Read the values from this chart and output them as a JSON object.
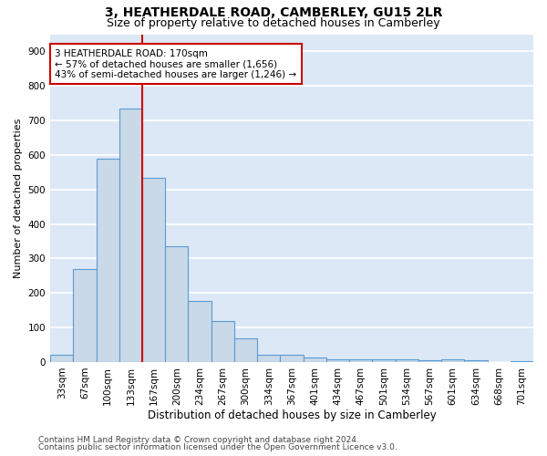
{
  "title": "3, HEATHERDALE ROAD, CAMBERLEY, GU15 2LR",
  "subtitle": "Size of property relative to detached houses in Camberley",
  "xlabel": "Distribution of detached houses by size in Camberley",
  "ylabel": "Number of detached properties",
  "categories": [
    "33sqm",
    "67sqm",
    "100sqm",
    "133sqm",
    "167sqm",
    "200sqm",
    "234sqm",
    "267sqm",
    "300sqm",
    "334sqm",
    "367sqm",
    "401sqm",
    "434sqm",
    "467sqm",
    "501sqm",
    "534sqm",
    "567sqm",
    "601sqm",
    "634sqm",
    "668sqm",
    "701sqm"
  ],
  "values": [
    20,
    270,
    590,
    735,
    535,
    335,
    178,
    118,
    68,
    22,
    20,
    12,
    9,
    8,
    7,
    7,
    5,
    7,
    5,
    1,
    2
  ],
  "bar_color": "#c9d9e8",
  "bar_edge_color": "#5b9bd5",
  "bar_edge_width": 0.8,
  "marker_index": 4,
  "marker_color": "#cc0000",
  "annotation_line1": "3 HEATHERDALE ROAD: 170sqm",
  "annotation_line2": "← 57% of detached houses are smaller (1,656)",
  "annotation_line3": "43% of semi-detached houses are larger (1,246) →",
  "annotation_box_color": "#cc0000",
  "ylim": [
    0,
    950
  ],
  "yticks": [
    0,
    100,
    200,
    300,
    400,
    500,
    600,
    700,
    800,
    900
  ],
  "background_color": "#dce8f5",
  "grid_color": "#ffffff",
  "footer_line1": "Contains HM Land Registry data © Crown copyright and database right 2024.",
  "footer_line2": "Contains public sector information licensed under the Open Government Licence v3.0.",
  "title_fontsize": 10,
  "subtitle_fontsize": 9,
  "xlabel_fontsize": 8.5,
  "ylabel_fontsize": 8,
  "tick_fontsize": 7.5,
  "annotation_fontsize": 7.5,
  "footer_fontsize": 6.5
}
